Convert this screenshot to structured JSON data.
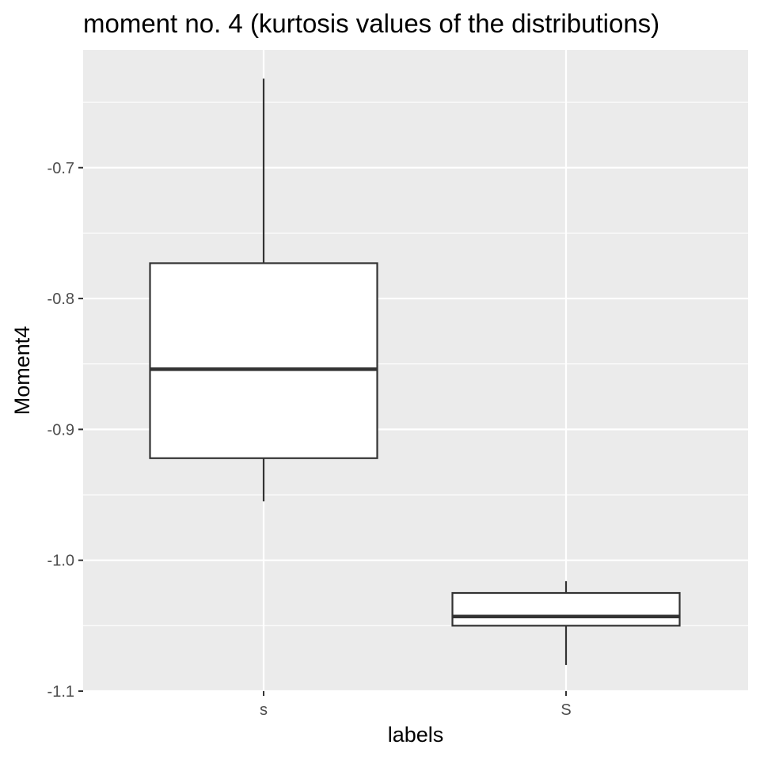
{
  "chart_data": {
    "type": "boxplot",
    "title": "moment no. 4 (kurtosis values of the distributions)",
    "xlabel": "labels",
    "ylabel": "Moment4",
    "categories": [
      "s",
      "S"
    ],
    "boxes": [
      {
        "label": "s",
        "whisker_low": -0.955,
        "q1": -0.922,
        "median": -0.854,
        "q3": -0.773,
        "whisker_high": -0.632
      },
      {
        "label": "S",
        "whisker_low": -1.08,
        "q1": -1.05,
        "median": -1.043,
        "q3": -1.025,
        "whisker_high": -1.016
      }
    ],
    "ylim": [
      -1.1,
      -0.61
    ],
    "yticks": [
      -1.1,
      -1.0,
      -0.9,
      -0.8,
      -0.7
    ],
    "ytick_labels": [
      "-1.1",
      "-1.0",
      "-0.9",
      "-0.8",
      "-0.7"
    ],
    "grid": true,
    "legend": "none",
    "colors": {
      "panel_background": "#ebebeb",
      "grid_major": "#ffffff",
      "box_fill": "#ffffff",
      "box_stroke": "#333333",
      "tick_text": "#4d4d4d",
      "tick_mark": "#333333"
    }
  }
}
